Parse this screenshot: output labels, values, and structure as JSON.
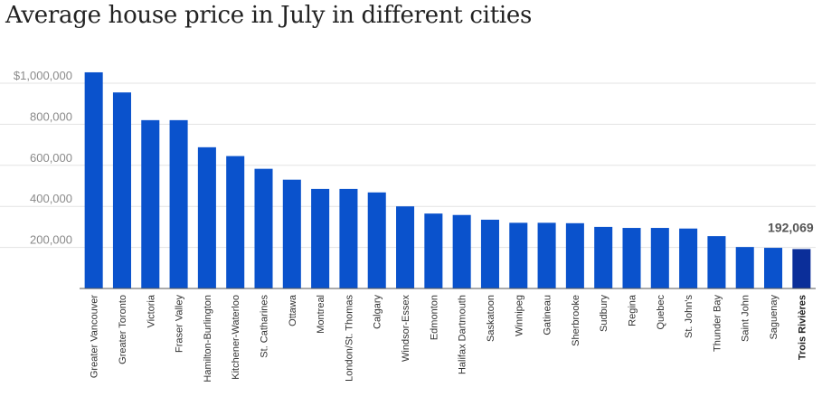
{
  "chart_data": {
    "type": "bar",
    "title": "Average house price in July in different cities",
    "xlabel": "",
    "ylabel": "",
    "ylim": [
      0,
      1000000
    ],
    "yticks": [
      200000,
      400000,
      600000,
      800000,
      1000000
    ],
    "ytick_labels": [
      "200,000",
      "400,000",
      "600,000",
      "800,000",
      "$1,000,000"
    ],
    "grid": true,
    "categories": [
      "Greater Vancouver",
      "Greater Toronto",
      "Victoria",
      "Fraser Valley",
      "Hamilton-Burlington",
      "Kitchener-Waterloo",
      "St. Catharines",
      "Ottawa",
      "Montreal",
      "London/St. Thomas",
      "Calgary",
      "Windsor-Essex",
      "Edmonton",
      "Halifax Dartmouth",
      "Saskatoon",
      "Winnipeg",
      "Gatineau",
      "Sherbrooke",
      "Sudbury",
      "Regina",
      "Quebec",
      "St. John's",
      "Thunder Bay",
      "Saint John",
      "Saguenay",
      "Trois Rivières"
    ],
    "values": [
      1053000,
      955000,
      820000,
      820000,
      688000,
      645000,
      583000,
      530000,
      485000,
      485000,
      468000,
      400000,
      365000,
      358000,
      335000,
      320000,
      320000,
      318000,
      300000,
      295000,
      295000,
      292000,
      255000,
      202000,
      198000,
      192069
    ],
    "highlight_category": "Trois Rivières",
    "annotations": [
      "192,069"
    ],
    "colors": {
      "bar": "#0a52cc",
      "highlight": "#0b2e99",
      "grid": "#e3e3e3",
      "axis": "#555555"
    }
  }
}
